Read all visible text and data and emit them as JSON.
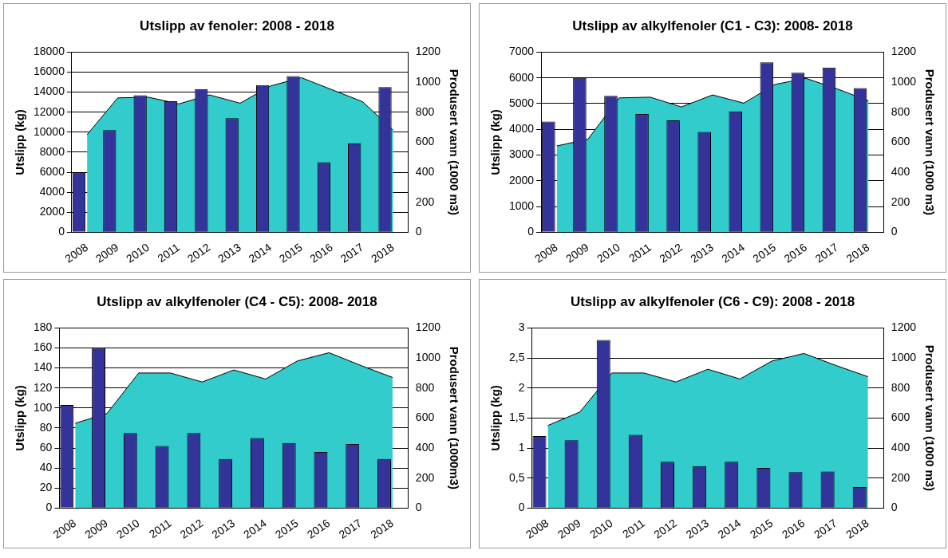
{
  "chart_data": [
    {
      "type": "bar",
      "title": "Utslipp av fenoler: 2008 - 2018",
      "ylabel": "Utslipp (kg)",
      "y2label": "Produsert vann (1000 m3)",
      "categories": [
        "2008",
        "2009",
        "2010",
        "2011",
        "2012",
        "2013",
        "2014",
        "2015",
        "2016",
        "2017",
        "2018"
      ],
      "ylim": [
        0,
        18000
      ],
      "yticks": [
        0,
        2000,
        4000,
        6000,
        8000,
        10000,
        12000,
        14000,
        16000,
        18000
      ],
      "y2lim": [
        0,
        1200
      ],
      "y2ticks": [
        0,
        200,
        400,
        600,
        800,
        1000,
        1200
      ],
      "grid": "y",
      "series": [
        {
          "type": "area",
          "axis": "y2",
          "color": "#33cccc",
          "values": [
            650,
            895,
            900,
            855,
            915,
            860,
            975,
            1030,
            950,
            870,
            680
          ]
        },
        {
          "color": "#333399",
          "values": [
            6000,
            10200,
            13700,
            13100,
            14300,
            11400,
            14700,
            15600,
            7000,
            8900,
            14500
          ]
        }
      ]
    },
    {
      "type": "bar",
      "title": "Utslipp av alkylfenoler (C1 - C3): 2008- 2018",
      "ylabel": "Utslipp (kg)",
      "y2label": "Produsert vann (1000 m3)",
      "categories": [
        "2008",
        "2009",
        "2010",
        "2011",
        "2012",
        "2013",
        "2014",
        "2015",
        "2016",
        "2017",
        "2018"
      ],
      "ylim": [
        0,
        7000
      ],
      "yticks": [
        0,
        1000,
        2000,
        3000,
        4000,
        5000,
        6000,
        7000
      ],
      "y2lim": [
        0,
        1200
      ],
      "y2ticks": [
        0,
        200,
        400,
        600,
        800,
        1000,
        1200
      ],
      "grid": "y",
      "series": [
        {
          "type": "area",
          "axis": "y2",
          "color": "#33cccc",
          "values": [
            575,
            620,
            895,
            900,
            835,
            915,
            860,
            985,
            1025,
            955,
            875
          ]
        },
        {
          "color": "#333399",
          "values": [
            4300,
            6000,
            5300,
            4600,
            4350,
            3900,
            4700,
            6600,
            6200,
            6400,
            5600
          ]
        }
      ]
    },
    {
      "type": "bar",
      "title": "Utslipp av alkylfenoler (C4 - C5): 2008- 2018",
      "ylabel": "Utslipp (kg)",
      "y2label": "Produsert vann (1000m3)",
      "categories": [
        "2008",
        "2009",
        "2010",
        "2011",
        "2012",
        "2013",
        "2014",
        "2015",
        "2016",
        "2017",
        "2018"
      ],
      "ylim": [
        0,
        180
      ],
      "yticks": [
        0,
        20,
        40,
        60,
        80,
        100,
        120,
        140,
        160,
        180
      ],
      "y2lim": [
        0,
        1200
      ],
      "y2ticks": [
        0,
        200,
        400,
        600,
        800,
        1000,
        1200
      ],
      "grid": "y",
      "series": [
        {
          "type": "area",
          "axis": "y2",
          "color": "#33cccc",
          "values": [
            565,
            630,
            900,
            900,
            840,
            920,
            860,
            980,
            1035,
            950,
            870
          ]
        },
        {
          "color": "#333399",
          "values": [
            103,
            160,
            75,
            62,
            75,
            49,
            70,
            65,
            56,
            64,
            49
          ]
        }
      ]
    },
    {
      "type": "bar",
      "title": "Utslipp av alkylfenoler (C6 - C9): 2008 - 2018",
      "ylabel": "Utslipp (kg)",
      "y2label": "Produsert vann (1000 m3)",
      "categories": [
        "2008",
        "2009",
        "2010",
        "2011",
        "2012",
        "2013",
        "2014",
        "2015",
        "2016",
        "2017",
        "2018"
      ],
      "ylim": [
        0,
        3
      ],
      "yticks": [
        0,
        {
          "value": 0.5,
          "label": "0,5"
        },
        1,
        {
          "value": 1.5,
          "label": "1,5"
        },
        2,
        {
          "value": 2.5,
          "label": "2,5"
        },
        3
      ],
      "y2lim": [
        0,
        1200
      ],
      "y2ticks": [
        0,
        200,
        400,
        600,
        800,
        1000,
        1200
      ],
      "grid": "y",
      "series": [
        {
          "type": "area",
          "axis": "y2",
          "color": "#33cccc",
          "values": [
            550,
            640,
            900,
            900,
            840,
            925,
            860,
            980,
            1030,
            950,
            875
          ]
        },
        {
          "color": "#333399",
          "values": [
            1.2,
            1.13,
            2.8,
            1.22,
            0.77,
            0.7,
            0.77,
            0.67,
            0.6,
            0.61,
            0.35
          ]
        }
      ]
    }
  ]
}
